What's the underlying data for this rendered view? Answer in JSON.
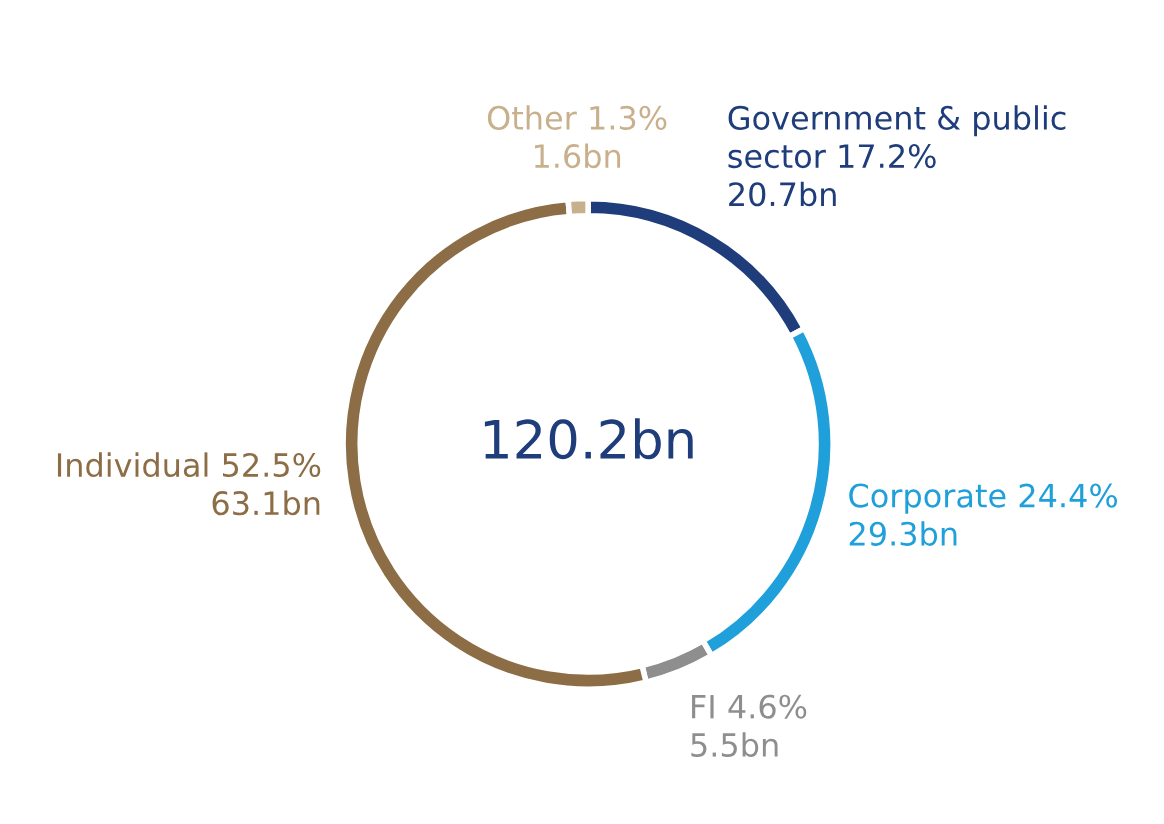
{
  "chart_data": {
    "type": "donut",
    "categories": [
      "Government & public sector",
      "Corporate",
      "FI",
      "Individual",
      "Other"
    ],
    "values": [
      17.2,
      24.4,
      4.6,
      52.5,
      1.3
    ],
    "colors": [
      "#1f3d7a",
      "#20a0db",
      "#8e8e8e",
      "#8c6d46",
      "#c9b08c"
    ],
    "value_labels": [
      "17.2%",
      "24.4%",
      "4.6%",
      "52.5%",
      "1.3%"
    ],
    "annotations": [
      "120.2bn",
      "20.7bn",
      "29.3bn",
      "5.5bn",
      "63.1bn",
      "1.6bn"
    ],
    "legend": false
  }
}
